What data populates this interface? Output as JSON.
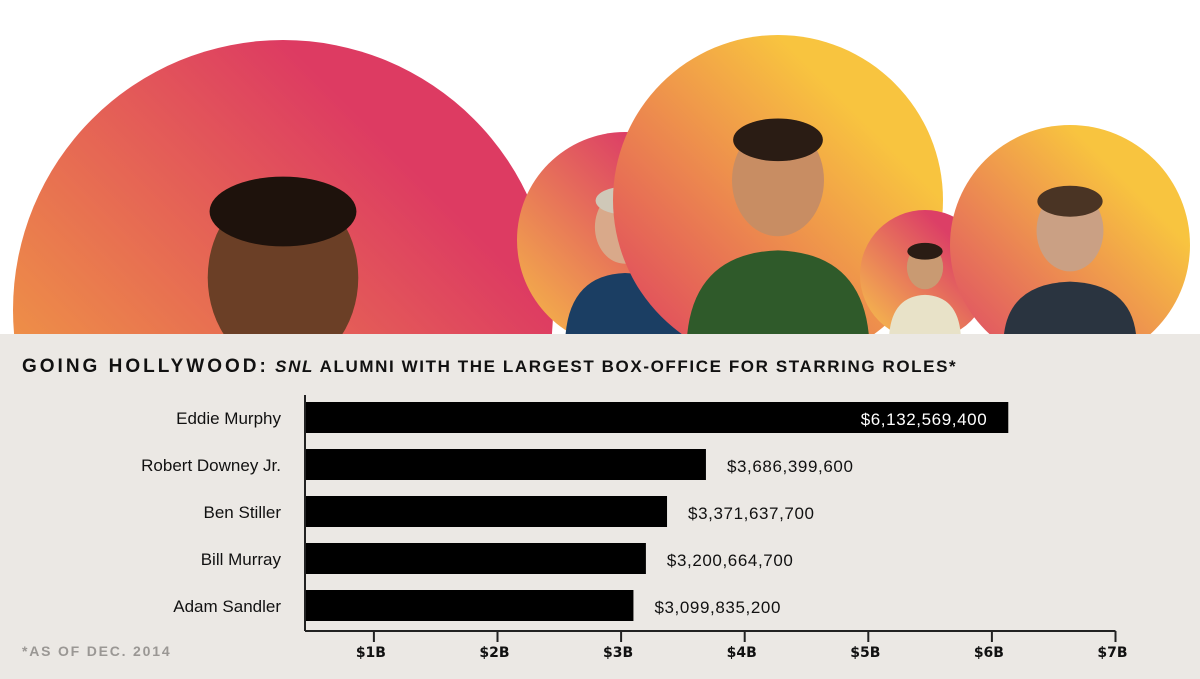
{
  "title": {
    "main": "GOING HOLLYWOOD:",
    "snl": "SNL",
    "rest": " ALUMNI WITH THE LARGEST BOX-OFFICE FOR STARRING ROLES*"
  },
  "footnote": "*AS OF DEC. 2014",
  "photos": [
    {
      "name": "Eddie Murphy",
      "colors": [
        "#f5b33c",
        "#dd3b62"
      ]
    },
    {
      "name": "Bill Murray",
      "colors": [
        "#f7c046",
        "#dc3f66"
      ]
    },
    {
      "name": "Robert Downey Jr.",
      "colors": [
        "#dd3b62",
        "#f8c43f"
      ]
    },
    {
      "name": "Adam Sandler",
      "colors": [
        "#f8c84a",
        "#dc3f66"
      ]
    },
    {
      "name": "Ben Stiller",
      "colors": [
        "#dd4468",
        "#f8c43f"
      ]
    }
  ],
  "chart_data": {
    "type": "bar",
    "orientation": "horizontal",
    "title": "GOING HOLLYWOOD: SNL ALUMNI WITH THE LARGEST BOX-OFFICE FOR STARRING ROLES*",
    "categories": [
      "Eddie Murphy",
      "Robert Downey Jr.",
      "Ben Stiller",
      "Bill Murray",
      "Adam Sandler"
    ],
    "values": [
      6132569400,
      3686399600,
      3371637700,
      3200664700,
      3099835200
    ],
    "value_labels": [
      "$6,132,569,400",
      "$3,686,399,600",
      "$3,371,637,700",
      "$3,200,664,700",
      "$3,099,835,200"
    ],
    "xticks": [
      1,
      2,
      3,
      4,
      5,
      6,
      7
    ],
    "xtick_labels": [
      "$1B",
      "$2B",
      "$3B",
      "$4B",
      "$5B",
      "$6B",
      "$7B"
    ],
    "xlim": [
      0.44,
      7
    ],
    "xlabel": "",
    "ylabel": "",
    "grid": false,
    "bar_color": "#000000"
  }
}
